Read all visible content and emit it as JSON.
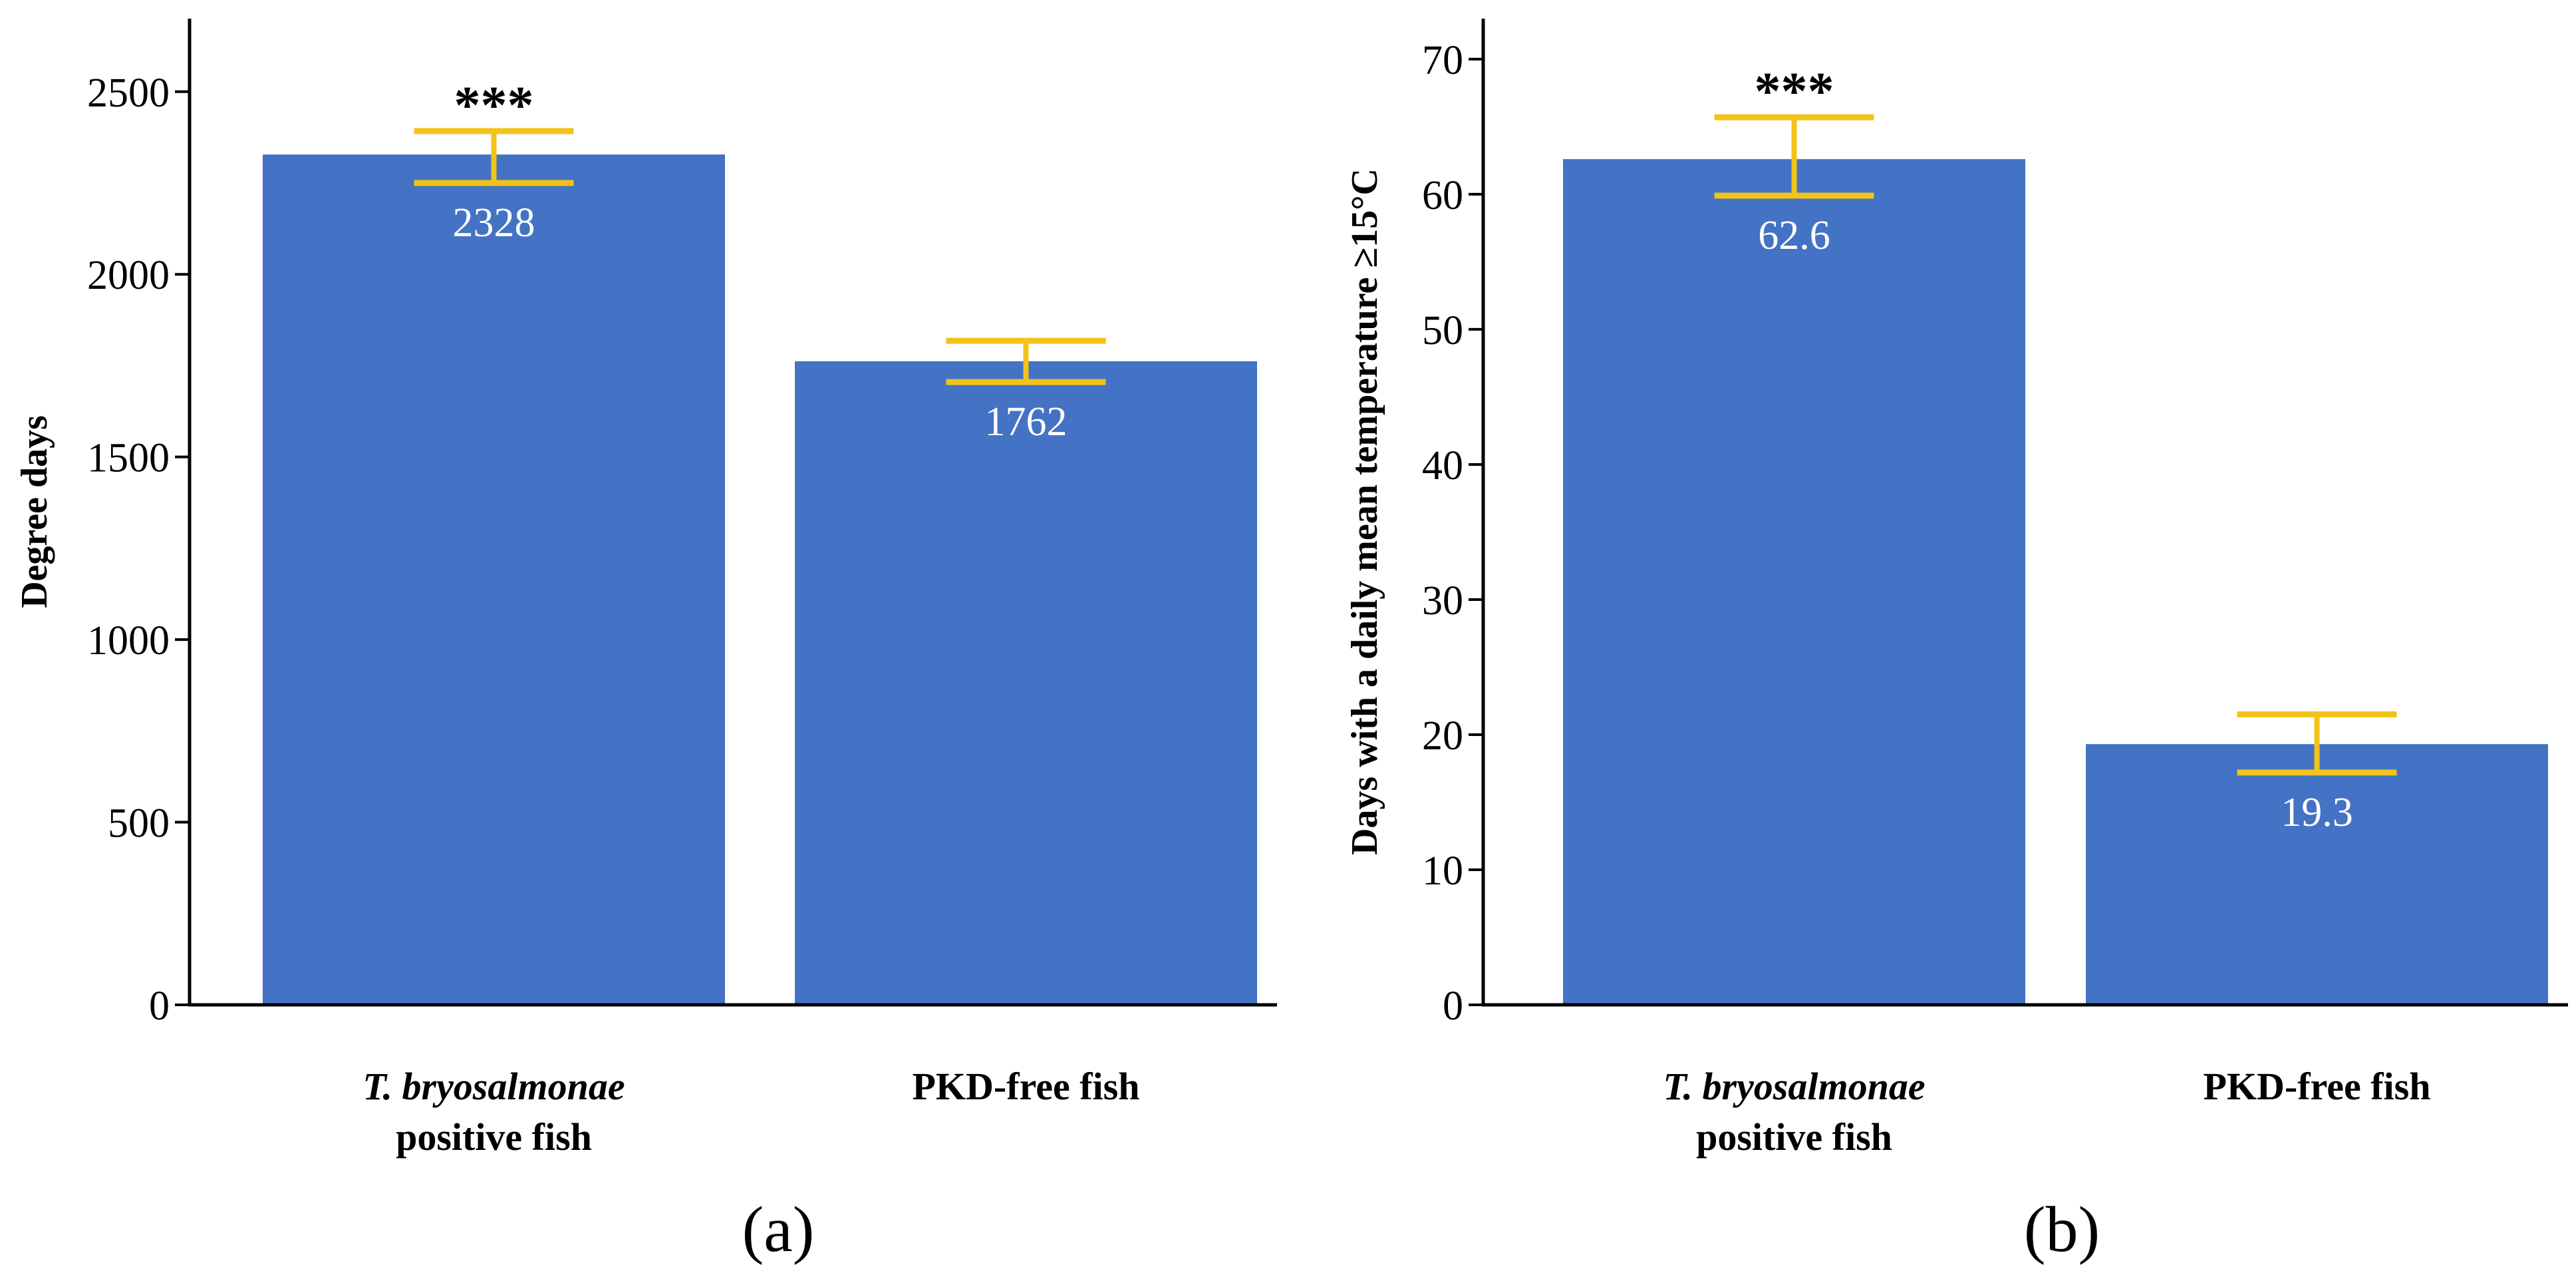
{
  "colors": {
    "bar": "#4472C4",
    "error_bar": "#F2C318",
    "axis": "#000000",
    "bar_label": "#FFFFFF"
  },
  "chart_data": [
    {
      "type": "bar",
      "panel_label": "(a)",
      "ylabel": "Degree days",
      "categories": [
        {
          "line1": "T. bryosalmonae",
          "line1_style": "italic",
          "line2": "positive fish"
        },
        {
          "line1": "PKD-free fish",
          "line1_style": "bold",
          "line2": ""
        }
      ],
      "values": [
        2328,
        1762
      ],
      "value_labels": [
        "2328",
        "1762"
      ],
      "error_low": [
        2250,
        1705
      ],
      "error_high": [
        2392,
        1818
      ],
      "significance": [
        "***",
        ""
      ],
      "ylim": [
        0,
        2700
      ],
      "yticks": [
        0,
        500,
        1000,
        1500,
        2000,
        2500
      ]
    },
    {
      "type": "bar",
      "panel_label": "(b)",
      "ylabel": "Days with a daily mean temperature ≥15°C",
      "categories": [
        {
          "line1": "T. bryosalmonae",
          "line1_style": "italic",
          "line2": "positive fish"
        },
        {
          "line1": "PKD-free fish",
          "line1_style": "bold",
          "line2": ""
        }
      ],
      "values": [
        62.6,
        19.3
      ],
      "value_labels": [
        "62.6",
        "19.3"
      ],
      "error_low": [
        59.9,
        17.2
      ],
      "error_high": [
        65.7,
        21.5
      ],
      "significance": [
        "***",
        ""
      ],
      "ylim": [
        0,
        73
      ],
      "yticks": [
        0,
        10,
        20,
        30,
        40,
        50,
        60,
        70
      ]
    }
  ]
}
